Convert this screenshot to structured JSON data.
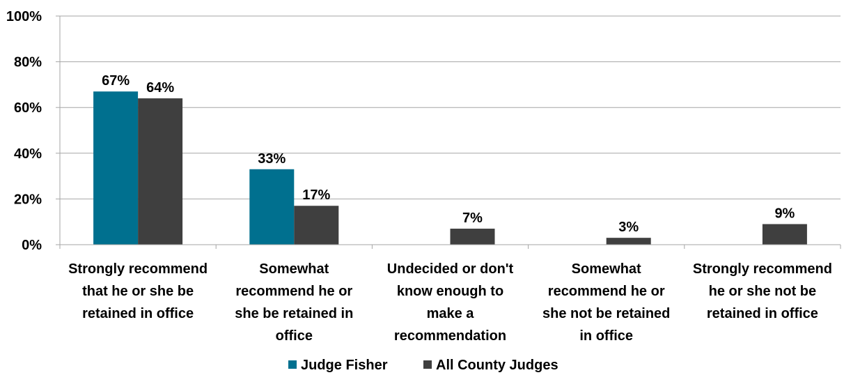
{
  "colors": {
    "judge_fisher": "#00708f",
    "all_county_judges": "#3f3f3f",
    "gridline": "#a6a6a6",
    "axis": "#a6a6a6"
  },
  "chart_data": {
    "type": "bar",
    "categories": [
      [
        "Strongly recommend",
        "that he or she be",
        "retained in office"
      ],
      [
        "Somewhat",
        "recommend he or",
        "she be retained in",
        "office"
      ],
      [
        "Undecided or don't",
        "know enough to",
        "make a",
        "recommendation"
      ],
      [
        "Somewhat",
        "recommend he or",
        "she not be retained",
        "in office"
      ],
      [
        "Strongly recommend",
        "he or she not be",
        "retained in office"
      ]
    ],
    "series": [
      {
        "name": "Judge Fisher",
        "values": [
          67,
          33,
          null,
          null,
          null
        ],
        "labels": [
          "67%",
          "33%",
          "",
          "",
          ""
        ]
      },
      {
        "name": "All County Judges",
        "values": [
          64,
          17,
          7,
          3,
          9
        ],
        "labels": [
          "64%",
          "17%",
          "7%",
          "3%",
          "9%"
        ]
      }
    ],
    "yticks": [
      "0%",
      "20%",
      "40%",
      "60%",
      "80%",
      "100%"
    ],
    "ylim": [
      0,
      100
    ],
    "grid": true,
    "legend_position": "bottom-center"
  }
}
